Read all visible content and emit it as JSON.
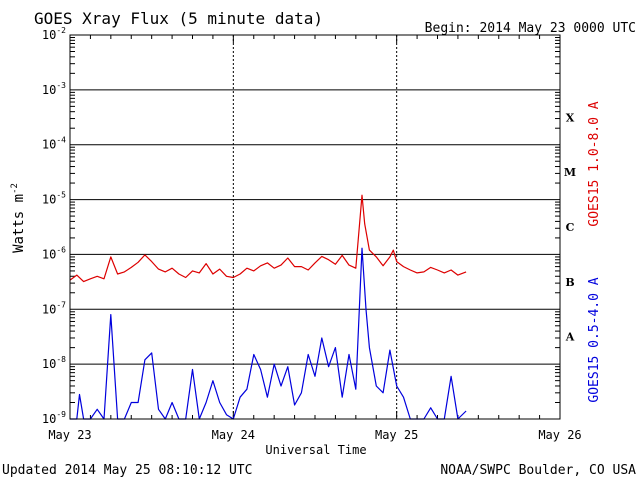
{
  "header": {
    "title": "GOES Xray Flux (5 minute data)",
    "begin": "Begin:  2014 May 23 0000 UTC"
  },
  "footer": {
    "updated": "Updated 2014 May 25 08:10:12 UTC",
    "credit": "NOAA/SWPC Boulder, CO USA"
  },
  "chart_data": {
    "type": "line",
    "title": "GOES Xray Flux (5 minute data)",
    "xlabel": "Universal Time",
    "ylabel": "Watts m-2",
    "ylabel_main": "Watts m",
    "ylabel_exp": "-2",
    "yscale": "log",
    "ylim": [
      1e-09,
      0.01
    ],
    "xlim_hours": [
      0,
      72
    ],
    "x_tick_labels": [
      "May 23",
      "May 24",
      "May 25",
      "May 26"
    ],
    "y_tick_labels": [
      {
        "base": "10",
        "exp": "-2"
      },
      {
        "base": "10",
        "exp": "-3"
      },
      {
        "base": "10",
        "exp": "-4"
      },
      {
        "base": "10",
        "exp": "-5"
      },
      {
        "base": "10",
        "exp": "-6"
      },
      {
        "base": "10",
        "exp": "-7"
      },
      {
        "base": "10",
        "exp": "-8"
      },
      {
        "base": "10",
        "exp": "-9"
      }
    ],
    "flare_classes": [
      "X",
      "M",
      "C",
      "B",
      "A"
    ],
    "grid": "horizontal at each decade; vertical at day boundaries",
    "series": [
      {
        "name": "GOES15 1.0-8.0 A",
        "color": "#dd0000",
        "x_hours": [
          0,
          1,
          2,
          3,
          4,
          5,
          6,
          7,
          8,
          9,
          10,
          11,
          12,
          13,
          14,
          15,
          16,
          17,
          18,
          19,
          20,
          21,
          22,
          23,
          24,
          25,
          26,
          27,
          28,
          29,
          30,
          31,
          32,
          33,
          34,
          35,
          36,
          37,
          38,
          39,
          40,
          41,
          42,
          42.9,
          43.3,
          44,
          45,
          46,
          47,
          47.5,
          48,
          49,
          50,
          51,
          52,
          53,
          54,
          55,
          56,
          57,
          58.2
        ],
        "y": [
          3.4e-07,
          4.2e-07,
          3.2e-07,
          3.6e-07,
          4e-07,
          3.6e-07,
          9e-07,
          4.4e-07,
          4.8e-07,
          5.8e-07,
          7.2e-07,
          9.8e-07,
          7.4e-07,
          5.4e-07,
          4.8e-07,
          5.6e-07,
          4.4e-07,
          3.8e-07,
          5e-07,
          4.6e-07,
          6.8e-07,
          4.4e-07,
          5.4e-07,
          4e-07,
          3.8e-07,
          4.4e-07,
          5.6e-07,
          5e-07,
          6.2e-07,
          7e-07,
          5.6e-07,
          6.4e-07,
          8.6e-07,
          6e-07,
          6e-07,
          5.2e-07,
          7e-07,
          9.2e-07,
          8e-07,
          6.6e-07,
          9.6e-07,
          6.4e-07,
          5.6e-07,
          1.2e-05,
          3.6e-06,
          1.2e-06,
          9e-07,
          6.2e-07,
          9e-07,
          1.2e-06,
          7.4e-07,
          6e-07,
          5.2e-07,
          4.6e-07,
          4.8e-07,
          5.8e-07,
          5.2e-07,
          4.6e-07,
          5.2e-07,
          4.2e-07,
          4.8e-07
        ]
      },
      {
        "name": "GOES15 0.5-4.0 A",
        "color": "#0000dd",
        "x_hours": [
          0,
          1,
          1.4,
          2,
          3,
          4,
          5,
          6,
          7,
          8,
          9,
          10,
          11,
          12,
          13,
          14,
          15,
          16,
          17,
          18,
          19,
          20,
          21,
          22,
          23,
          24,
          25,
          26,
          27,
          28,
          29,
          30,
          31,
          32,
          33,
          34,
          35,
          36,
          37,
          38,
          39,
          40,
          41,
          42,
          42.9,
          43.5,
          44,
          45,
          46,
          47,
          48,
          49,
          50,
          51,
          52,
          53,
          54,
          55,
          56,
          57,
          58.2
        ],
        "y": [
          1e-09,
          1e-09,
          2.8e-09,
          1e-09,
          1e-09,
          1.5e-09,
          1e-09,
          8e-08,
          1e-09,
          1e-09,
          2e-09,
          2e-09,
          1.2e-08,
          1.6e-08,
          1.5e-09,
          1e-09,
          2e-09,
          1e-09,
          1e-09,
          8e-09,
          1e-09,
          2e-09,
          5e-09,
          2e-09,
          1.2e-09,
          1e-09,
          2.5e-09,
          3.5e-09,
          1.5e-08,
          8e-09,
          2.5e-09,
          1e-08,
          4e-09,
          9e-09,
          1.8e-09,
          3e-09,
          1.5e-08,
          6e-09,
          3e-08,
          9e-09,
          2e-08,
          2.5e-09,
          1.5e-08,
          3.5e-09,
          1.3e-06,
          1e-07,
          2e-08,
          4e-09,
          3e-09,
          1.8e-08,
          4e-09,
          2.5e-09,
          1e-09,
          1e-09,
          1e-09,
          1.6e-09,
          1e-09,
          1e-09,
          6e-09,
          1e-09,
          1.4e-09
        ]
      }
    ]
  }
}
